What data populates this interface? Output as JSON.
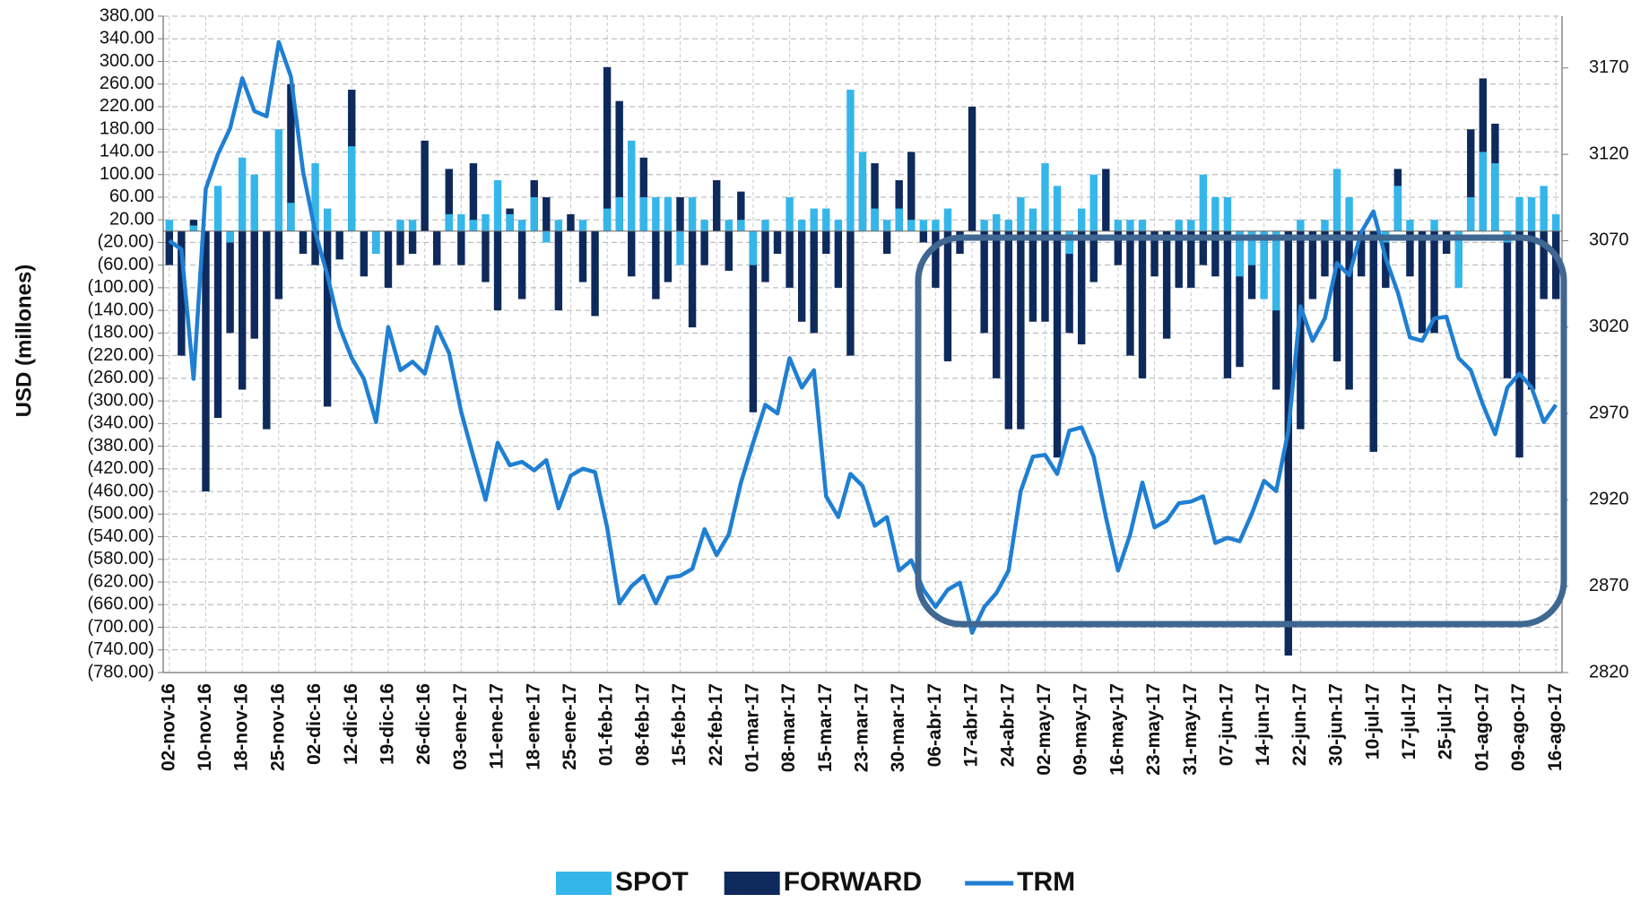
{
  "chart_data": {
    "type": "bar_line",
    "y_label": "USD (millones)",
    "categories": [
      "02-nov-16",
      null,
      null,
      "10-nov-16",
      null,
      null,
      "18-nov-16",
      null,
      null,
      "25-nov-16",
      null,
      null,
      "02-dic-16",
      null,
      null,
      "12-dic-16",
      null,
      null,
      "19-dic-16",
      null,
      null,
      "26-dic-16",
      null,
      null,
      "03-ene-17",
      null,
      null,
      "11-ene-17",
      null,
      null,
      "18-ene-17",
      null,
      null,
      "25-ene-17",
      null,
      null,
      "01-feb-17",
      null,
      null,
      "08-feb-17",
      null,
      null,
      "15-feb-17",
      null,
      null,
      "22-feb-17",
      null,
      null,
      "01-mar-17",
      null,
      null,
      "08-mar-17",
      null,
      null,
      "15-mar-17",
      null,
      null,
      "23-mar-17",
      null,
      null,
      "30-mar-17",
      null,
      null,
      "06-abr-17",
      null,
      null,
      "17-abr-17",
      null,
      null,
      "24-abr-17",
      null,
      null,
      "02-may-17",
      null,
      null,
      "09-may-17",
      null,
      null,
      "16-may-17",
      null,
      null,
      "23-may-17",
      null,
      null,
      "31-may-17",
      null,
      null,
      "07-jun-17",
      null,
      null,
      "14-jun-17",
      null,
      null,
      "22-jun-17",
      null,
      null,
      "30-jun-17",
      null,
      null,
      "10-jul-17",
      null,
      null,
      "17-jul-17",
      null,
      null,
      "25-jul-17",
      null,
      null,
      "01-ago-17",
      null,
      null,
      "09-ago-17",
      null,
      null,
      "16-ago-17"
    ],
    "series": [
      {
        "name": "SPOT",
        "color": "#35b6ea",
        "kind": "bar",
        "values": [
          20,
          0,
          10,
          0,
          80,
          -20,
          130,
          100,
          0,
          180,
          50,
          0,
          120,
          40,
          0,
          150,
          0,
          -40,
          0,
          20,
          20,
          0,
          0,
          30,
          30,
          20,
          30,
          90,
          30,
          20,
          60,
          -20,
          20,
          0,
          20,
          0,
          40,
          60,
          160,
          60,
          60,
          60,
          -60,
          60,
          20,
          0,
          20,
          20,
          -60,
          20,
          0,
          60,
          20,
          40,
          40,
          20,
          250,
          140,
          40,
          20,
          40,
          20,
          20,
          20,
          40,
          0,
          0,
          20,
          30,
          20,
          60,
          40,
          120,
          80,
          -40,
          40,
          100,
          0,
          20,
          20,
          20,
          0,
          0,
          20,
          20,
          100,
          60,
          60,
          -80,
          -60,
          -120,
          -140,
          0,
          20,
          0,
          20,
          110,
          60,
          0,
          0,
          -20,
          80,
          20,
          0,
          20,
          0,
          -100,
          60,
          140,
          120,
          -20,
          60,
          60,
          80,
          30
        ]
      },
      {
        "name": "FORWARD",
        "color": "#0e2a5c",
        "kind": "bar",
        "values": [
          -60,
          -220,
          20,
          -460,
          -330,
          -180,
          -280,
          -190,
          -350,
          -120,
          260,
          -40,
          -60,
          -310,
          -50,
          250,
          -80,
          -40,
          -100,
          -60,
          -40,
          160,
          -60,
          110,
          -60,
          120,
          -90,
          -140,
          40,
          -120,
          90,
          60,
          -140,
          30,
          -90,
          -150,
          290,
          230,
          -80,
          130,
          -120,
          -90,
          60,
          -170,
          -60,
          90,
          -70,
          70,
          -320,
          -90,
          -40,
          -100,
          -160,
          -180,
          -40,
          -100,
          -220,
          100,
          120,
          -40,
          90,
          140,
          -20,
          -100,
          -230,
          -40,
          220,
          -180,
          -260,
          -350,
          -350,
          -160,
          -160,
          -400,
          -180,
          -200,
          -90,
          110,
          -60,
          -220,
          -260,
          -80,
          -190,
          -100,
          -100,
          -60,
          -80,
          -260,
          -240,
          -120,
          -70,
          -280,
          -750,
          -350,
          -120,
          -80,
          -230,
          -280,
          -80,
          -390,
          -100,
          110,
          -80,
          -180,
          -180,
          -40,
          -60,
          180,
          270,
          190,
          -260,
          -400,
          -280,
          -120,
          -120
        ]
      },
      {
        "name": "TRM",
        "color": "#1f7fd2",
        "kind": "line",
        "axis": "y2",
        "values": [
          3070,
          3065,
          2990,
          3100,
          3120,
          3135,
          3164,
          3145,
          3142,
          3185,
          3165,
          3110,
          3075,
          3050,
          3020,
          3002,
          2990,
          2965,
          3020,
          2995,
          3000,
          2993,
          3020,
          3005,
          2971,
          2945,
          2920,
          2953,
          2940,
          2942,
          2937,
          2943,
          2915,
          2934,
          2938,
          2936,
          2904,
          2860,
          2870,
          2876,
          2860,
          2875,
          2876,
          2880,
          2903,
          2888,
          2900,
          2930,
          2953,
          2975,
          2970,
          3002,
          2985,
          2995,
          2922,
          2910,
          2935,
          2928,
          2905,
          2910,
          2879,
          2885,
          2868,
          2858,
          2868,
          2872,
          2843,
          2858,
          2866,
          2879,
          2925,
          2945,
          2946,
          2935,
          2960,
          2962,
          2945,
          2910,
          2879,
          2900,
          2930,
          2904,
          2908,
          2918,
          2919,
          2922,
          2895,
          2898,
          2896,
          2912,
          2931,
          2925,
          2960,
          3032,
          3012,
          3025,
          3057,
          3050,
          3075,
          3087,
          3060,
          3040,
          3014,
          3012,
          3025,
          3026,
          3002,
          2995,
          2975,
          2958,
          2985,
          2993,
          2985,
          2965,
          2975
        ]
      }
    ],
    "ylim": [
      -780,
      380
    ],
    "yticks": [
      {
        "value": 380,
        "label": "380.00"
      },
      {
        "value": 340,
        "label": "340.00"
      },
      {
        "value": 300,
        "label": "300.00"
      },
      {
        "value": 260,
        "label": "260.00"
      },
      {
        "value": 220,
        "label": "220.00"
      },
      {
        "value": 180,
        "label": "180.00"
      },
      {
        "value": 140,
        "label": "140.00"
      },
      {
        "value": 100,
        "label": "100.00"
      },
      {
        "value": 60,
        "label": "60.00"
      },
      {
        "value": 20,
        "label": "20.00"
      },
      {
        "value": -20,
        "label": "(20.00)"
      },
      {
        "value": -60,
        "label": "(60.00)"
      },
      {
        "value": -100,
        "label": "(100.00)"
      },
      {
        "value": -140,
        "label": "(140.00)"
      },
      {
        "value": -180,
        "label": "(180.00)"
      },
      {
        "value": -220,
        "label": "(220.00)"
      },
      {
        "value": -260,
        "label": "(260.00)"
      },
      {
        "value": -300,
        "label": "(300.00)"
      },
      {
        "value": -340,
        "label": "(340.00)"
      },
      {
        "value": -380,
        "label": "(380.00)"
      },
      {
        "value": -420,
        "label": "(420.00)"
      },
      {
        "value": -460,
        "label": "(460.00)"
      },
      {
        "value": -500,
        "label": "(500.00)"
      },
      {
        "value": -540,
        "label": "(540.00)"
      },
      {
        "value": -580,
        "label": "(580.00)"
      },
      {
        "value": -620,
        "label": "(620.00)"
      },
      {
        "value": -660,
        "label": "(660.00)"
      },
      {
        "value": -700,
        "label": "(700.00)"
      },
      {
        "value": -740,
        "label": "(740.00)"
      },
      {
        "value": -780,
        "label": "(780.00)"
      }
    ],
    "y2lim": [
      2820,
      3200
    ],
    "y2ticks": [
      2820,
      2870,
      2920,
      2970,
      3020,
      3070,
      3120,
      3170
    ],
    "grid": true
  }
}
